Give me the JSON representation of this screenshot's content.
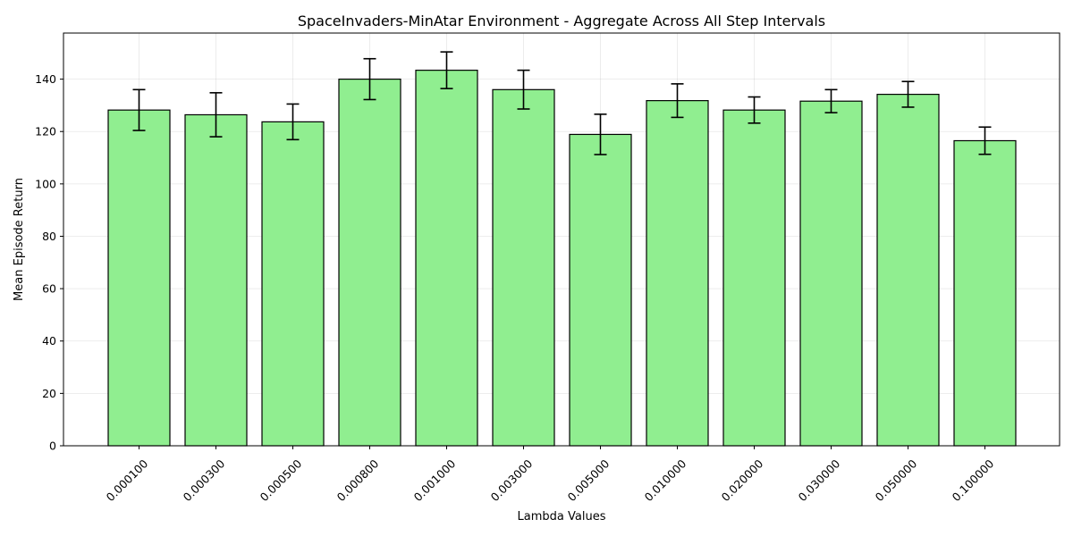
{
  "chart_data": {
    "type": "bar",
    "title": "SpaceInvaders-MinAtar Environment - Aggregate Across All Step Intervals",
    "xlabel": "Lambda Values",
    "ylabel": "Mean Episode Return",
    "categories": [
      "0.000100",
      "0.000300",
      "0.000500",
      "0.000800",
      "0.001000",
      "0.003000",
      "0.005000",
      "0.010000",
      "0.020000",
      "0.030000",
      "0.050000",
      "0.100000"
    ],
    "values": [
      128.2,
      126.4,
      123.7,
      140.0,
      143.4,
      136.0,
      118.9,
      131.8,
      128.2,
      131.6,
      134.2,
      116.5
    ],
    "errors": [
      7.8,
      8.4,
      6.8,
      7.8,
      7.0,
      7.4,
      7.7,
      6.4,
      5.0,
      4.4,
      4.9,
      5.2
    ],
    "ylim": [
      0,
      157.6
    ],
    "yticks": [
      0,
      20,
      40,
      60,
      80,
      100,
      120,
      140
    ],
    "grid": true,
    "bar_color": "#90ee90",
    "edge_color": "#000000"
  }
}
